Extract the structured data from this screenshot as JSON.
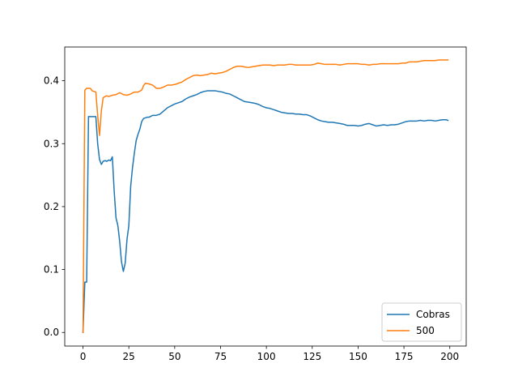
{
  "chart_data": {
    "type": "line",
    "title": "",
    "xlabel": "",
    "ylabel": "",
    "xlim": [
      -9.95,
      208.95
    ],
    "ylim": [
      -0.0216,
      0.4536
    ],
    "xticks": [
      0,
      25,
      50,
      75,
      100,
      125,
      150,
      175,
      200
    ],
    "yticks": [
      0.0,
      0.1,
      0.2,
      0.3,
      0.4
    ],
    "xtick_labels": [
      "0",
      "25",
      "50",
      "75",
      "100",
      "125",
      "150",
      "175",
      "200"
    ],
    "ytick_labels": [
      "0.0",
      "0.1",
      "0.2",
      "0.3",
      "0.4"
    ],
    "grid": false,
    "legend_position": "lower-right",
    "series": [
      {
        "name": "Cobras",
        "color": "#1f77b4",
        "points": [
          [
            0,
            0.0
          ],
          [
            1,
            0.08
          ],
          [
            2,
            0.08
          ],
          [
            3,
            0.343
          ],
          [
            4,
            0.343
          ],
          [
            5,
            0.343
          ],
          [
            6,
            0.343
          ],
          [
            7,
            0.343
          ],
          [
            8,
            0.3
          ],
          [
            9,
            0.275
          ],
          [
            10,
            0.267
          ],
          [
            11,
            0.272
          ],
          [
            12,
            0.273
          ],
          [
            13,
            0.272
          ],
          [
            14,
            0.274
          ],
          [
            15,
            0.273
          ],
          [
            16,
            0.279
          ],
          [
            17,
            0.225
          ],
          [
            18,
            0.182
          ],
          [
            19,
            0.17
          ],
          [
            20,
            0.145
          ],
          [
            21,
            0.112
          ],
          [
            22,
            0.097
          ],
          [
            23,
            0.11
          ],
          [
            24,
            0.148
          ],
          [
            25,
            0.17
          ],
          [
            26,
            0.232
          ],
          [
            27,
            0.262
          ],
          [
            28,
            0.285
          ],
          [
            29,
            0.305
          ],
          [
            30,
            0.315
          ],
          [
            31,
            0.323
          ],
          [
            32,
            0.335
          ],
          [
            33,
            0.34
          ],
          [
            34,
            0.341
          ],
          [
            35,
            0.342
          ],
          [
            36,
            0.342
          ],
          [
            38,
            0.345
          ],
          [
            40,
            0.345
          ],
          [
            42,
            0.347
          ],
          [
            44,
            0.352
          ],
          [
            46,
            0.357
          ],
          [
            48,
            0.36
          ],
          [
            50,
            0.363
          ],
          [
            52,
            0.365
          ],
          [
            54,
            0.367
          ],
          [
            56,
            0.371
          ],
          [
            58,
            0.374
          ],
          [
            60,
            0.376
          ],
          [
            62,
            0.378
          ],
          [
            64,
            0.381
          ],
          [
            66,
            0.383
          ],
          [
            68,
            0.384
          ],
          [
            70,
            0.384
          ],
          [
            72,
            0.384
          ],
          [
            74,
            0.383
          ],
          [
            76,
            0.382
          ],
          [
            78,
            0.38
          ],
          [
            80,
            0.379
          ],
          [
            82,
            0.376
          ],
          [
            84,
            0.373
          ],
          [
            86,
            0.37
          ],
          [
            88,
            0.367
          ],
          [
            90,
            0.366
          ],
          [
            92,
            0.365
          ],
          [
            94,
            0.364
          ],
          [
            96,
            0.362
          ],
          [
            98,
            0.359
          ],
          [
            100,
            0.357
          ],
          [
            102,
            0.356
          ],
          [
            104,
            0.354
          ],
          [
            106,
            0.352
          ],
          [
            108,
            0.35
          ],
          [
            110,
            0.349
          ],
          [
            112,
            0.348
          ],
          [
            114,
            0.348
          ],
          [
            116,
            0.347
          ],
          [
            118,
            0.347
          ],
          [
            120,
            0.346
          ],
          [
            122,
            0.346
          ],
          [
            124,
            0.344
          ],
          [
            126,
            0.341
          ],
          [
            128,
            0.338
          ],
          [
            130,
            0.336
          ],
          [
            132,
            0.335
          ],
          [
            134,
            0.334
          ],
          [
            136,
            0.334
          ],
          [
            138,
            0.333
          ],
          [
            140,
            0.332
          ],
          [
            142,
            0.331
          ],
          [
            144,
            0.329
          ],
          [
            146,
            0.329
          ],
          [
            148,
            0.329
          ],
          [
            150,
            0.328
          ],
          [
            152,
            0.329
          ],
          [
            154,
            0.331
          ],
          [
            156,
            0.332
          ],
          [
            158,
            0.33
          ],
          [
            160,
            0.328
          ],
          [
            162,
            0.329
          ],
          [
            164,
            0.33
          ],
          [
            166,
            0.329
          ],
          [
            168,
            0.33
          ],
          [
            170,
            0.33
          ],
          [
            172,
            0.331
          ],
          [
            174,
            0.333
          ],
          [
            176,
            0.335
          ],
          [
            178,
            0.336
          ],
          [
            180,
            0.336
          ],
          [
            182,
            0.336
          ],
          [
            184,
            0.337
          ],
          [
            186,
            0.336
          ],
          [
            188,
            0.337
          ],
          [
            190,
            0.337
          ],
          [
            192,
            0.336
          ],
          [
            194,
            0.337
          ],
          [
            196,
            0.338
          ],
          [
            198,
            0.338
          ],
          [
            199,
            0.337
          ]
        ]
      },
      {
        "name": "500",
        "color": "#ff7f0e",
        "points": [
          [
            0,
            0.0
          ],
          [
            1,
            0.385
          ],
          [
            2,
            0.388
          ],
          [
            3,
            0.388
          ],
          [
            4,
            0.388
          ],
          [
            5,
            0.384
          ],
          [
            6,
            0.383
          ],
          [
            7,
            0.382
          ],
          [
            8,
            0.345
          ],
          [
            9,
            0.313
          ],
          [
            10,
            0.352
          ],
          [
            11,
            0.373
          ],
          [
            12,
            0.375
          ],
          [
            13,
            0.376
          ],
          [
            14,
            0.375
          ],
          [
            16,
            0.377
          ],
          [
            18,
            0.378
          ],
          [
            20,
            0.381
          ],
          [
            22,
            0.378
          ],
          [
            24,
            0.377
          ],
          [
            26,
            0.379
          ],
          [
            28,
            0.382
          ],
          [
            30,
            0.382
          ],
          [
            32,
            0.385
          ],
          [
            33,
            0.392
          ],
          [
            34,
            0.396
          ],
          [
            36,
            0.395
          ],
          [
            38,
            0.393
          ],
          [
            40,
            0.388
          ],
          [
            42,
            0.388
          ],
          [
            44,
            0.39
          ],
          [
            46,
            0.393
          ],
          [
            48,
            0.393
          ],
          [
            50,
            0.394
          ],
          [
            52,
            0.396
          ],
          [
            54,
            0.398
          ],
          [
            56,
            0.402
          ],
          [
            58,
            0.405
          ],
          [
            60,
            0.408
          ],
          [
            62,
            0.409
          ],
          [
            64,
            0.408
          ],
          [
            66,
            0.409
          ],
          [
            68,
            0.41
          ],
          [
            70,
            0.412
          ],
          [
            72,
            0.411
          ],
          [
            74,
            0.412
          ],
          [
            76,
            0.413
          ],
          [
            78,
            0.415
          ],
          [
            80,
            0.418
          ],
          [
            82,
            0.421
          ],
          [
            84,
            0.423
          ],
          [
            86,
            0.423
          ],
          [
            88,
            0.422
          ],
          [
            90,
            0.421
          ],
          [
            92,
            0.422
          ],
          [
            94,
            0.423
          ],
          [
            96,
            0.424
          ],
          [
            98,
            0.425
          ],
          [
            100,
            0.425
          ],
          [
            102,
            0.425
          ],
          [
            104,
            0.424
          ],
          [
            106,
            0.425
          ],
          [
            108,
            0.425
          ],
          [
            110,
            0.425
          ],
          [
            112,
            0.426
          ],
          [
            114,
            0.426
          ],
          [
            116,
            0.425
          ],
          [
            118,
            0.425
          ],
          [
            120,
            0.425
          ],
          [
            122,
            0.425
          ],
          [
            124,
            0.425
          ],
          [
            126,
            0.426
          ],
          [
            128,
            0.428
          ],
          [
            130,
            0.427
          ],
          [
            132,
            0.426
          ],
          [
            134,
            0.426
          ],
          [
            136,
            0.426
          ],
          [
            138,
            0.426
          ],
          [
            140,
            0.425
          ],
          [
            142,
            0.426
          ],
          [
            144,
            0.427
          ],
          [
            146,
            0.427
          ],
          [
            148,
            0.427
          ],
          [
            150,
            0.427
          ],
          [
            152,
            0.426
          ],
          [
            154,
            0.426
          ],
          [
            156,
            0.425
          ],
          [
            158,
            0.426
          ],
          [
            160,
            0.426
          ],
          [
            162,
            0.427
          ],
          [
            164,
            0.427
          ],
          [
            166,
            0.427
          ],
          [
            168,
            0.427
          ],
          [
            170,
            0.427
          ],
          [
            172,
            0.427
          ],
          [
            174,
            0.428
          ],
          [
            176,
            0.428
          ],
          [
            178,
            0.43
          ],
          [
            180,
            0.43
          ],
          [
            182,
            0.43
          ],
          [
            184,
            0.431
          ],
          [
            186,
            0.432
          ],
          [
            188,
            0.432
          ],
          [
            190,
            0.432
          ],
          [
            192,
            0.432
          ],
          [
            194,
            0.433
          ],
          [
            196,
            0.433
          ],
          [
            198,
            0.433
          ],
          [
            199,
            0.433
          ]
        ]
      }
    ]
  }
}
